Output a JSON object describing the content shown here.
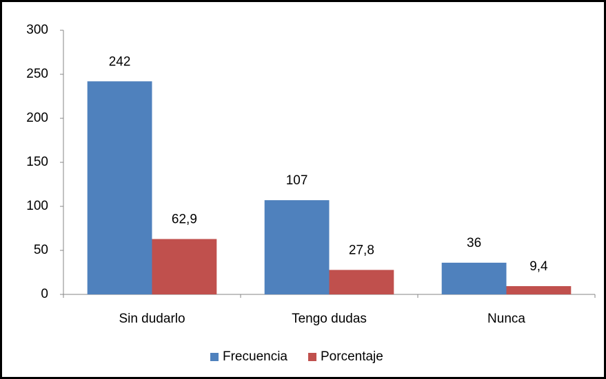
{
  "chart_data": {
    "type": "bar",
    "categories": [
      "Sin dudarlo",
      "Tengo dudas",
      "Nunca"
    ],
    "series": [
      {
        "name": "Frecuencia",
        "color": "#4f81bd",
        "values": [
          242,
          107,
          36
        ]
      },
      {
        "name": "Porcentaje",
        "color": "#c0504d",
        "values": [
          62.9,
          27.8,
          9.4
        ],
        "value_labels": [
          "62,9",
          "27,8",
          "9,4"
        ]
      }
    ],
    "ylim": [
      0,
      300
    ],
    "yticks": [
      0,
      50,
      100,
      150,
      200,
      250,
      300
    ],
    "grid": false,
    "legend": "bottom"
  }
}
